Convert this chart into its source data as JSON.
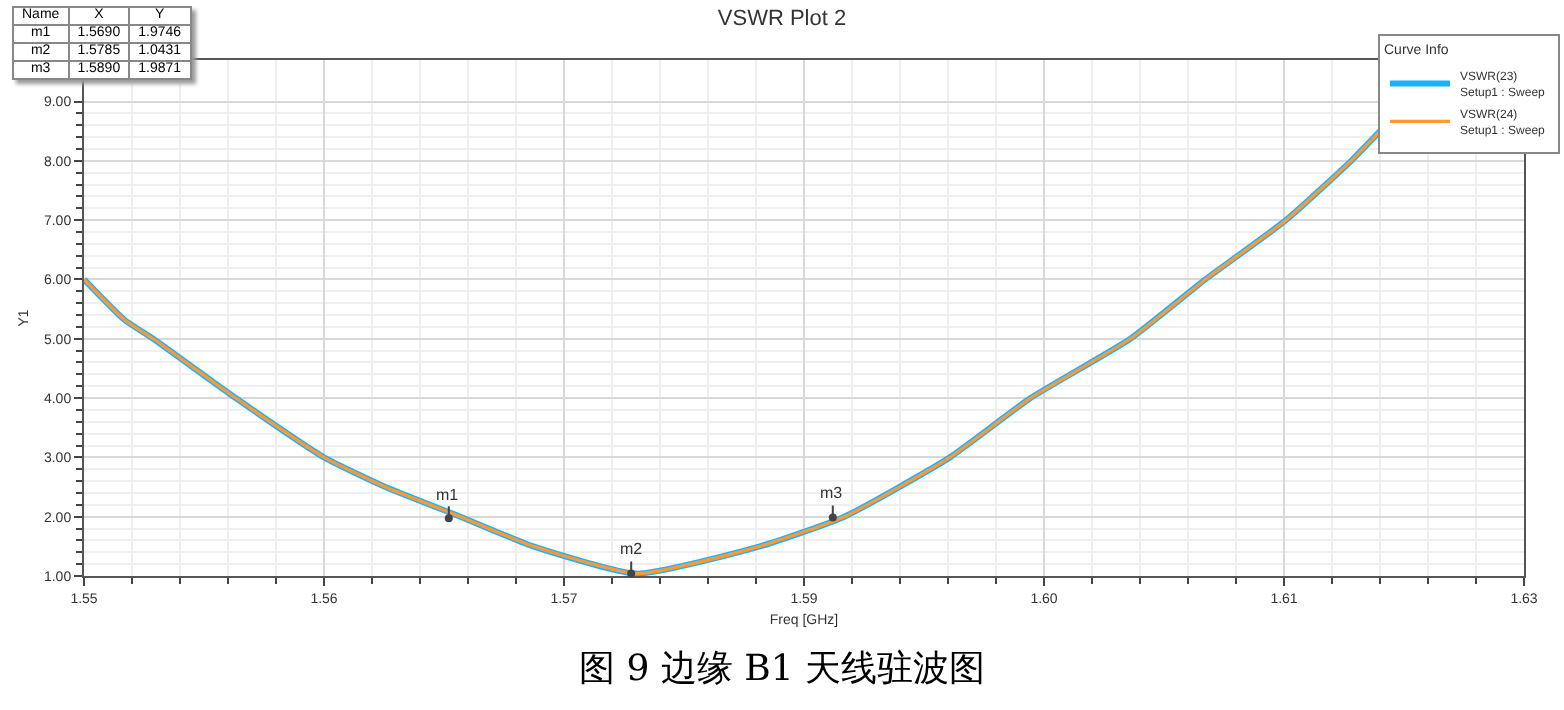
{
  "chart_data": {
    "type": "line",
    "title": "VSWR Plot 2",
    "xlabel": "Freq [GHz]",
    "ylabel": "Y1",
    "legend_title": "Curve Info",
    "x": [
      1.55,
      1.5521,
      1.5536,
      1.5579,
      1.5625,
      1.5657,
      1.5696,
      1.5734,
      1.5788,
      1.5852,
      1.5896,
      1.5951,
      1.5993,
      1.6045,
      1.6084,
      1.6126,
      1.616,
      1.6175
    ],
    "series": [
      {
        "name": "VSWR(23)\nSetup1 : Sweep",
        "color": "#1ab2ff",
        "values": [
          6.0,
          5.32,
          5.0,
          4.0,
          3.0,
          2.5,
          2.0,
          1.5,
          1.04,
          1.5,
          2.0,
          3.0,
          4.0,
          5.0,
          6.0,
          7.0,
          8.0,
          8.5
        ]
      },
      {
        "name": "VSWR(24)\nSetup1 : Sweep",
        "color": "#ff9933",
        "values": [
          6.0,
          5.32,
          5.0,
          4.0,
          3.0,
          2.5,
          2.0,
          1.5,
          1.04,
          1.5,
          2.0,
          3.0,
          4.0,
          5.0,
          6.0,
          7.0,
          8.0,
          8.5
        ]
      }
    ],
    "xlim": [
      1.55,
      1.625
    ],
    "xticks": [
      {
        "value": 1.55,
        "label": "1.55"
      },
      {
        "value": 1.5625,
        "label": "1.56"
      },
      {
        "value": 1.575,
        "label": "1.57"
      },
      {
        "value": 1.5875,
        "label": "1.59"
      },
      {
        "value": 1.6,
        "label": "1.60"
      },
      {
        "value": 1.6125,
        "label": "1.61"
      },
      {
        "value": 1.625,
        "label": "1.63"
      }
    ],
    "ylim": [
      1,
      9.7
    ],
    "yticks": [
      {
        "value": 1,
        "label": "1.00"
      },
      {
        "value": 2,
        "label": "2.00"
      },
      {
        "value": 3,
        "label": "3.00"
      },
      {
        "value": 4,
        "label": "4.00"
      },
      {
        "value": 5,
        "label": "5.00"
      },
      {
        "value": 6,
        "label": "6.00"
      },
      {
        "value": 7,
        "label": "7.00"
      },
      {
        "value": 8,
        "label": "8.00"
      },
      {
        "value": 9,
        "label": "9.00"
      }
    ],
    "grid": true,
    "legend": "top right",
    "marker": "none",
    "line_style": "solid",
    "annotations": [
      "图 9 边缘 B1 天线驻波图",
      {
        "text": "m1",
        "x": 1.569,
        "y": 1.9746
      },
      {
        "text": "m2",
        "x": 1.5785,
        "y": 1.0431
      },
      {
        "text": "m3",
        "x": 1.589,
        "y": 1.9871
      },
      "Name",
      "X",
      "Y",
      "m1",
      "1.5690",
      "1.9746",
      "m2",
      "1.5785",
      "1.0431",
      "m3",
      "1.5890",
      "1.9871"
    ]
  }
}
